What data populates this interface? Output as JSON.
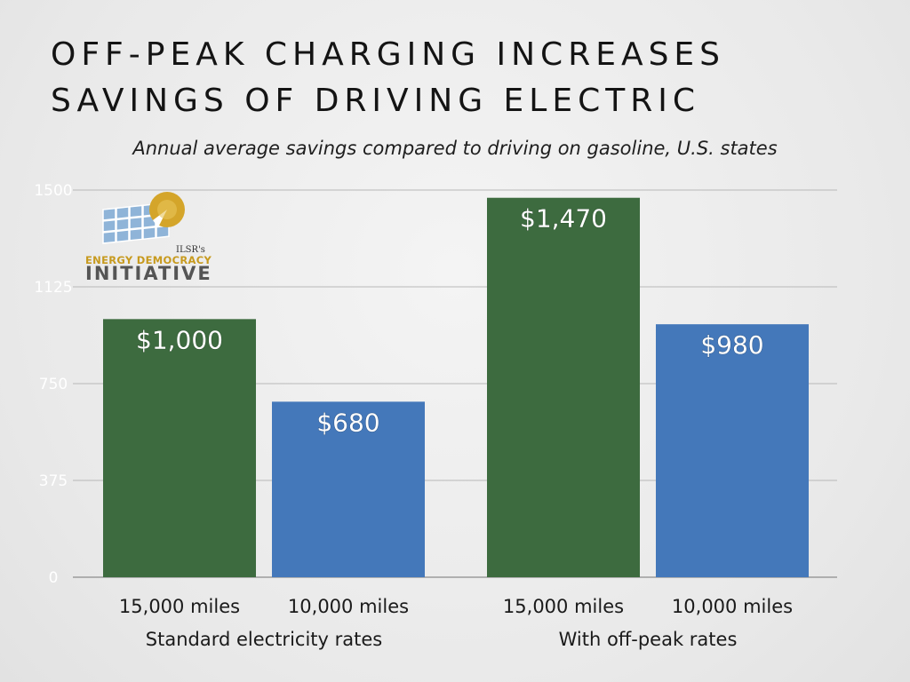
{
  "slide": {
    "title_line1": "OFF-PEAK CHARGING INCREASES",
    "title_line2": "SAVINGS OF DRIVING ELECTRIC"
  },
  "logo": {
    "org_small": "ILSR's",
    "line1": "ENERGY DEMOCRACY",
    "line2": "INITIATIVE"
  },
  "colors": {
    "green": "#3d6b3f",
    "blue": "#4478ba"
  },
  "chart_data": {
    "type": "bar",
    "title": "",
    "subtitle": "Annual average savings compared to driving on gasoline, U.S. states",
    "ylim": [
      0,
      1500
    ],
    "yticks": [
      "0",
      "375",
      "750",
      "1125",
      "1500"
    ],
    "grid": true,
    "groups": [
      {
        "label": "Standard electricity rates",
        "bars": [
          {
            "category": "15,000 miles",
            "value": 1000,
            "label": "$1,000",
            "color": "green"
          },
          {
            "category": "10,000 miles",
            "value": 680,
            "label": "$680",
            "color": "blue"
          }
        ]
      },
      {
        "label": "With off-peak rates",
        "bars": [
          {
            "category": "15,000 miles",
            "value": 1470,
            "label": "$1,470",
            "color": "green"
          },
          {
            "category": "10,000 miles",
            "value": 980,
            "label": "$980",
            "color": "blue"
          }
        ]
      }
    ]
  }
}
